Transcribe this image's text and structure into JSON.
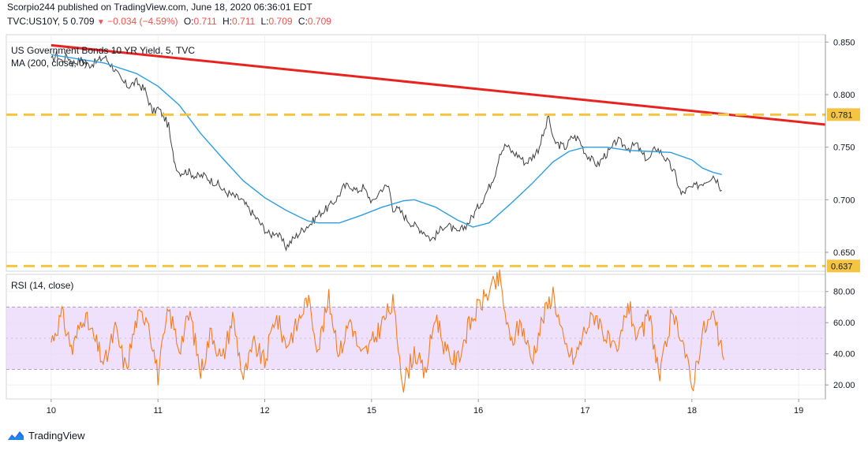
{
  "header": {
    "attribution": "Scorpio244 published on TradingView.com, June 18, 2020 06:36:01 EDT",
    "symbol": "TVC:US10Y, 5",
    "last": "0.709",
    "change_arrow": "▼",
    "change": "−0.034 (−4.59%)",
    "o_label": "O:",
    "o": "0.711",
    "h_label": "H:",
    "h": "0.711",
    "l_label": "L:",
    "l": "0.709",
    "c_label": "C:",
    "c": "0.709"
  },
  "footer": {
    "brand": "TradingView",
    "logo_icon": "tradingview-logo-icon"
  },
  "colors": {
    "price": "#3f3f3f",
    "ma": "#2d9ee0",
    "trendline": "#e8231f",
    "dashed": "#f5c542",
    "rsi": "#f57c1e",
    "rsi_band": "#e9d7fb",
    "axis_text": "#131722",
    "label_bg": "#f5c542"
  },
  "chart_data": [
    {
      "type": "line",
      "title": "US Government Bonds 10 YR Yield, 5, TVC",
      "indicator": "MA (200, close, 0)",
      "ylim": [
        0.632,
        0.857
      ],
      "yticks": [
        "0.850",
        "0.800",
        "0.750",
        "0.700",
        "0.650"
      ],
      "x_ticks": [
        "10",
        "11",
        "12",
        "15",
        "16",
        "17",
        "18",
        "19"
      ],
      "grid": true,
      "horizontal_levels": [
        {
          "value": 0.781,
          "label": "0.781"
        },
        {
          "value": 0.637,
          "label": "0.637"
        }
      ],
      "trendline": {
        "from": [
          0,
          0.847
        ],
        "to": [
          7.2,
          0.772
        ]
      },
      "series": [
        {
          "values": [
            [
              0.0,
              0.832
            ],
            [
              0.05,
              0.838
            ],
            [
              0.1,
              0.832
            ],
            [
              0.15,
              0.837
            ],
            [
              0.2,
              0.83
            ],
            [
              0.28,
              0.833
            ],
            [
              0.35,
              0.828
            ],
            [
              0.42,
              0.831
            ],
            [
              0.5,
              0.836
            ],
            [
              0.58,
              0.826
            ],
            [
              0.66,
              0.813
            ],
            [
              0.72,
              0.808
            ],
            [
              0.8,
              0.812
            ],
            [
              0.88,
              0.804
            ],
            [
              0.95,
              0.783
            ],
            [
              1.0,
              0.787
            ],
            [
              1.05,
              0.78
            ],
            [
              1.1,
              0.77
            ],
            [
              1.13,
              0.748
            ],
            [
              1.16,
              0.735
            ],
            [
              1.2,
              0.726
            ],
            [
              1.28,
              0.727
            ],
            [
              1.36,
              0.722
            ],
            [
              1.44,
              0.723
            ],
            [
              1.5,
              0.718
            ],
            [
              1.55,
              0.716
            ],
            [
              1.62,
              0.708
            ],
            [
              1.7,
              0.704
            ],
            [
              1.78,
              0.7
            ],
            [
              1.86,
              0.69
            ],
            [
              1.94,
              0.68
            ],
            [
              2.0,
              0.672
            ],
            [
              2.05,
              0.666
            ],
            [
              2.1,
              0.67
            ],
            [
              2.15,
              0.663
            ],
            [
              2.2,
              0.655
            ],
            [
              2.26,
              0.662
            ],
            [
              2.32,
              0.668
            ],
            [
              2.38,
              0.674
            ],
            [
              2.44,
              0.678
            ],
            [
              2.5,
              0.686
            ],
            [
              2.56,
              0.69
            ],
            [
              2.62,
              0.695
            ],
            [
              2.68,
              0.702
            ],
            [
              2.74,
              0.712
            ],
            [
              2.8,
              0.714
            ],
            [
              2.86,
              0.708
            ],
            [
              2.92,
              0.712
            ],
            [
              2.98,
              0.702
            ],
            [
              3.02,
              0.697
            ],
            [
              3.06,
              0.706
            ],
            [
              3.1,
              0.711
            ],
            [
              3.16,
              0.713
            ],
            [
              3.2,
              0.692
            ],
            [
              3.26,
              0.69
            ],
            [
              3.32,
              0.683
            ],
            [
              3.38,
              0.677
            ],
            [
              3.44,
              0.673
            ],
            [
              3.5,
              0.669
            ],
            [
              3.56,
              0.662
            ],
            [
              3.62,
              0.668
            ],
            [
              3.68,
              0.676
            ],
            [
              3.74,
              0.674
            ],
            [
              3.8,
              0.668
            ],
            [
              3.86,
              0.673
            ],
            [
              3.92,
              0.68
            ],
            [
              3.98,
              0.69
            ],
            [
              4.04,
              0.7
            ],
            [
              4.1,
              0.712
            ],
            [
              4.16,
              0.726
            ],
            [
              4.2,
              0.745
            ],
            [
              4.26,
              0.752
            ],
            [
              4.32,
              0.745
            ],
            [
              4.38,
              0.742
            ],
            [
              4.44,
              0.735
            ],
            [
              4.5,
              0.74
            ],
            [
              4.56,
              0.748
            ],
            [
              4.62,
              0.765
            ],
            [
              4.66,
              0.78
            ],
            [
              4.7,
              0.756
            ],
            [
              4.76,
              0.752
            ],
            [
              4.82,
              0.75
            ],
            [
              4.88,
              0.76
            ],
            [
              4.94,
              0.758
            ],
            [
              5.0,
              0.745
            ],
            [
              5.06,
              0.738
            ],
            [
              5.12,
              0.733
            ],
            [
              5.18,
              0.742
            ],
            [
              5.24,
              0.747
            ],
            [
              5.3,
              0.757
            ],
            [
              5.36,
              0.752
            ],
            [
              5.42,
              0.749
            ],
            [
              5.48,
              0.753
            ],
            [
              5.54,
              0.742
            ],
            [
              5.6,
              0.738
            ],
            [
              5.66,
              0.75
            ],
            [
              5.72,
              0.744
            ],
            [
              5.78,
              0.735
            ],
            [
              5.84,
              0.725
            ],
            [
              5.9,
              0.705
            ],
            [
              5.96,
              0.71
            ],
            [
              6.02,
              0.712
            ],
            [
              6.08,
              0.715
            ],
            [
              6.14,
              0.719
            ],
            [
              6.2,
              0.723
            ],
            [
              6.24,
              0.718
            ],
            [
              6.28,
              0.709
            ]
          ]
        },
        {
          "name": "MA (200, close, 0)",
          "values": [
            [
              0.0,
              0.838
            ],
            [
              0.5,
              0.83
            ],
            [
              0.8,
              0.82
            ],
            [
              1.0,
              0.808
            ],
            [
              1.2,
              0.79
            ],
            [
              1.4,
              0.763
            ],
            [
              1.6,
              0.74
            ],
            [
              1.8,
              0.718
            ],
            [
              2.0,
              0.702
            ],
            [
              2.2,
              0.69
            ],
            [
              2.4,
              0.68
            ],
            [
              2.5,
              0.678
            ],
            [
              2.7,
              0.678
            ],
            [
              2.9,
              0.685
            ],
            [
              3.1,
              0.693
            ],
            [
              3.3,
              0.699
            ],
            [
              3.4,
              0.7
            ],
            [
              3.6,
              0.693
            ],
            [
              3.8,
              0.681
            ],
            [
              3.95,
              0.674
            ],
            [
              4.1,
              0.678
            ],
            [
              4.3,
              0.696
            ],
            [
              4.5,
              0.715
            ],
            [
              4.7,
              0.736
            ],
            [
              4.85,
              0.746
            ],
            [
              5.0,
              0.75
            ],
            [
              5.2,
              0.75
            ],
            [
              5.4,
              0.747
            ],
            [
              5.6,
              0.746
            ],
            [
              5.8,
              0.745
            ],
            [
              6.0,
              0.738
            ],
            [
              6.1,
              0.73
            ],
            [
              6.2,
              0.726
            ],
            [
              6.28,
              0.724
            ]
          ]
        }
      ]
    },
    {
      "type": "line",
      "title": "RSI (14, close)",
      "ylim": [
        11,
        91
      ],
      "yticks": [
        "80.00",
        "60.00",
        "40.00",
        "20.00"
      ],
      "band": [
        30,
        70
      ],
      "midline": 50,
      "x_ticks": [
        "10",
        "11",
        "12",
        "15",
        "16",
        "17",
        "18",
        "19"
      ],
      "series": [
        {
          "name": "RSI (14, close)",
          "values": [
            [
              0.0,
              48
            ],
            [
              0.1,
              65
            ],
            [
              0.2,
              42
            ],
            [
              0.3,
              66
            ],
            [
              0.4,
              50
            ],
            [
              0.5,
              33
            ],
            [
              0.6,
              56
            ],
            [
              0.7,
              30
            ],
            [
              0.8,
              62
            ],
            [
              0.9,
              66
            ],
            [
              1.0,
              26
            ],
            [
              1.1,
              68
            ],
            [
              1.2,
              44
            ],
            [
              1.3,
              66
            ],
            [
              1.4,
              28
            ],
            [
              1.5,
              55
            ],
            [
              1.6,
              35
            ],
            [
              1.7,
              64
            ],
            [
              1.8,
              24
            ],
            [
              1.9,
              46
            ],
            [
              2.0,
              34
            ],
            [
              2.1,
              65
            ],
            [
              2.2,
              46
            ],
            [
              2.3,
              58
            ],
            [
              2.4,
              76
            ],
            [
              2.5,
              44
            ],
            [
              2.6,
              75
            ],
            [
              2.7,
              40
            ],
            [
              2.8,
              63
            ],
            [
              2.9,
              38
            ],
            [
              3.0,
              46
            ],
            [
              3.1,
              60
            ],
            [
              3.2,
              72
            ],
            [
              3.3,
              20
            ],
            [
              3.4,
              42
            ],
            [
              3.5,
              26
            ],
            [
              3.6,
              66
            ],
            [
              3.7,
              40
            ],
            [
              3.8,
              35
            ],
            [
              3.9,
              56
            ],
            [
              4.0,
              70
            ],
            [
              4.1,
              80
            ],
            [
              4.2,
              88
            ],
            [
              4.3,
              46
            ],
            [
              4.4,
              60
            ],
            [
              4.5,
              36
            ],
            [
              4.6,
              62
            ],
            [
              4.7,
              80
            ],
            [
              4.8,
              46
            ],
            [
              4.9,
              36
            ],
            [
              5.0,
              56
            ],
            [
              5.1,
              66
            ],
            [
              5.2,
              50
            ],
            [
              5.3,
              38
            ],
            [
              5.4,
              73
            ],
            [
              5.5,
              48
            ],
            [
              5.6,
              65
            ],
            [
              5.7,
              24
            ],
            [
              5.8,
              62
            ],
            [
              5.9,
              54
            ],
            [
              6.0,
              18
            ],
            [
              6.1,
              54
            ],
            [
              6.2,
              65
            ],
            [
              6.26,
              46
            ],
            [
              6.3,
              36
            ]
          ]
        }
      ]
    }
  ]
}
